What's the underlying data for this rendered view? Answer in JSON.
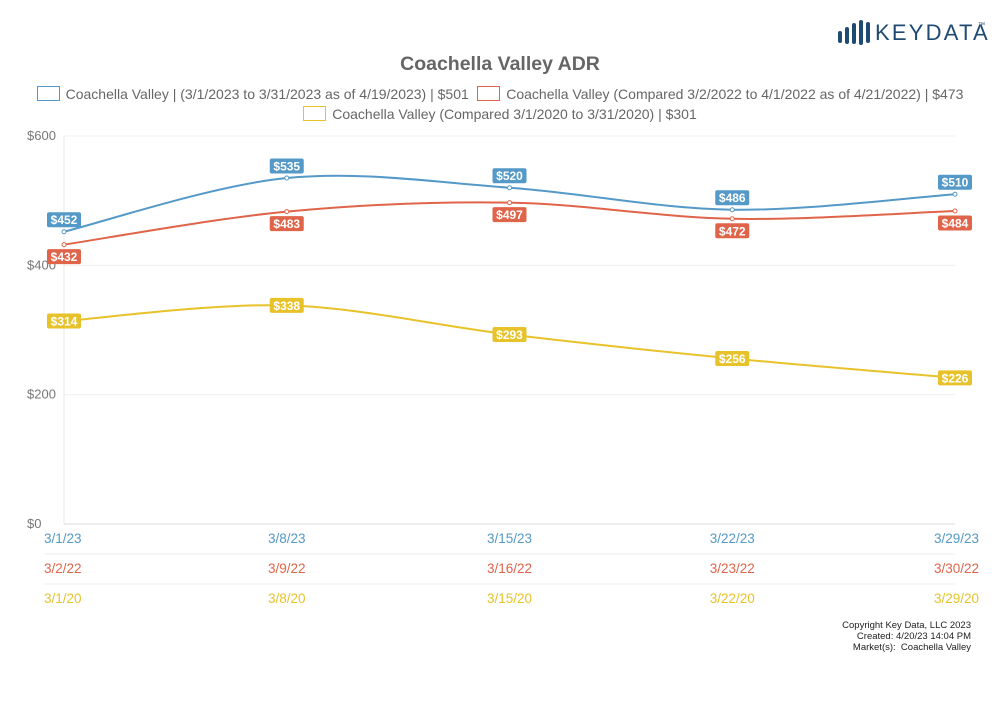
{
  "brand": {
    "name": "KEYDATA",
    "tm": "™"
  },
  "chart_data": {
    "type": "line",
    "title": "Coachella Valley ADR",
    "xlabel": "",
    "ylabel": "",
    "ylim": [
      0,
      600
    ],
    "yticks": [
      "$0",
      "$200",
      "$400",
      "$600"
    ],
    "ytick_values": [
      0,
      200,
      400,
      600
    ],
    "grid": true,
    "legend_placement": "top",
    "x_rows": [
      [
        "3/1/23",
        "3/8/23",
        "3/15/23",
        "3/22/23",
        "3/29/23"
      ],
      [
        "3/2/22",
        "3/9/22",
        "3/16/22",
        "3/23/22",
        "3/30/22"
      ],
      [
        "3/1/20",
        "3/8/20",
        "3/15/20",
        "3/22/20",
        "3/29/20"
      ]
    ],
    "series": [
      {
        "name": "Coachella Valley | (3/1/2023 to 3/31/2023 as of 4/19/2023) | $501",
        "color": "#5499c7",
        "values": [
          452,
          535,
          520,
          486,
          510
        ],
        "labels": [
          "$452",
          "$535",
          "$520",
          "$486",
          "$510"
        ]
      },
      {
        "name": "Coachella Valley (Compared 3/2/2022 to 4/1/2022 as of 4/21/2022) | $473",
        "color": "#e0644a",
        "values": [
          432,
          483,
          497,
          472,
          484
        ],
        "labels": [
          "$432",
          "$483",
          "$497",
          "$472",
          "$484"
        ]
      },
      {
        "name": "Coachella Valley (Compared 3/1/2020 to 3/31/2020) | $301",
        "color": "#e8c22a",
        "values": [
          314,
          338,
          293,
          256,
          226
        ],
        "labels": [
          "$314",
          "$338",
          "$293",
          "$256",
          "$226"
        ]
      }
    ]
  },
  "footer": {
    "copyright": "Copyright Key Data, LLC 2023",
    "created": "Created: 4/20/23 14:04 PM",
    "markets": "Market(s):  Coachella Valley"
  }
}
